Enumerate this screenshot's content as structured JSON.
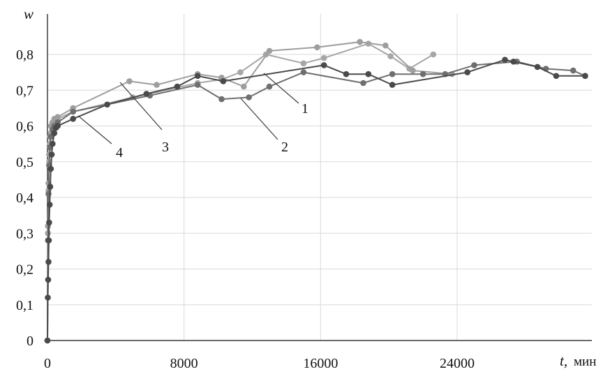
{
  "chart_data": {
    "type": "line",
    "xlabel": "t,",
    "xunit": "мин",
    "ylabel": "w",
    "xlim": [
      0,
      32000
    ],
    "ylim": [
      0,
      0.8
    ],
    "x_ticks": [
      0,
      8000,
      16000,
      24000
    ],
    "x_tick_labels": [
      "0",
      "8000",
      "16000",
      "24000"
    ],
    "y_ticks": [
      0,
      0.1,
      0.2,
      0.3,
      0.4,
      0.5,
      0.6,
      0.7,
      0.8
    ],
    "y_tick_labels": [
      "0",
      "0,1",
      "0,2",
      "0,3",
      "0,4",
      "0,5",
      "0,6",
      "0,7",
      "0,8"
    ],
    "grid": true,
    "legend": "none",
    "colors": {
      "series_1": "#a6a6a6",
      "series_2": "#6f6f6f",
      "series_3": "#9e9e9e",
      "series_4": "#4a4a4a"
    },
    "series": [
      {
        "name": "1",
        "x": [
          0,
          30,
          60,
          100,
          150,
          200,
          300,
          400,
          600,
          1500,
          5000,
          8800,
          10200,
          11300,
          12800,
          15000,
          16200,
          18800,
          20100,
          21200,
          22600
        ],
        "y": [
          0,
          0.3,
          0.42,
          0.5,
          0.55,
          0.58,
          0.6,
          0.61,
          0.62,
          0.64,
          0.68,
          0.72,
          0.73,
          0.75,
          0.8,
          0.775,
          0.79,
          0.83,
          0.795,
          0.76,
          0.8
        ]
      },
      {
        "name": "2",
        "x": [
          0,
          30,
          60,
          100,
          150,
          200,
          300,
          400,
          600,
          1500,
          6000,
          8800,
          10200,
          11800,
          13000,
          15000,
          18500,
          20200,
          22000,
          23300,
          25000,
          27500,
          29200,
          30800,
          31500
        ],
        "y": [
          0,
          0.28,
          0.41,
          0.49,
          0.54,
          0.57,
          0.59,
          0.6,
          0.61,
          0.64,
          0.685,
          0.715,
          0.675,
          0.68,
          0.71,
          0.75,
          0.72,
          0.745,
          0.745,
          0.745,
          0.77,
          0.78,
          0.76,
          0.755,
          0.74
        ]
      },
      {
        "name": "3",
        "x": [
          0,
          30,
          60,
          100,
          150,
          200,
          300,
          400,
          600,
          1500,
          4800,
          6400,
          8800,
          10200,
          11500,
          13000,
          15800,
          18300,
          19800,
          21400,
          23700
        ],
        "y": [
          0,
          0.32,
          0.44,
          0.52,
          0.57,
          0.6,
          0.61,
          0.62,
          0.625,
          0.65,
          0.725,
          0.715,
          0.745,
          0.735,
          0.71,
          0.81,
          0.82,
          0.835,
          0.825,
          0.755,
          0.745
        ]
      },
      {
        "name": "4",
        "x": [
          0,
          20,
          40,
          60,
          80,
          100,
          130,
          160,
          200,
          250,
          300,
          400,
          500,
          600,
          1500,
          3500,
          5800,
          7600,
          8800,
          10300,
          16200,
          17500,
          18800,
          20200,
          24600,
          26800,
          27300,
          28700,
          29800,
          31500
        ],
        "y": [
          0,
          0.12,
          0.17,
          0.22,
          0.28,
          0.33,
          0.38,
          0.43,
          0.48,
          0.52,
          0.55,
          0.58,
          0.595,
          0.6,
          0.62,
          0.66,
          0.69,
          0.71,
          0.74,
          0.725,
          0.77,
          0.745,
          0.745,
          0.715,
          0.75,
          0.785,
          0.78,
          0.765,
          0.74,
          0.74
        ]
      }
    ],
    "annotations": [
      {
        "text": "1",
        "x": 14900,
        "y": 0.65
      },
      {
        "text": "2",
        "x": 14300,
        "y": 0.545
      },
      {
        "text": "3",
        "x": 7000,
        "y": 0.55
      },
      {
        "text": "4",
        "x": 4300,
        "y": 0.52
      }
    ]
  }
}
